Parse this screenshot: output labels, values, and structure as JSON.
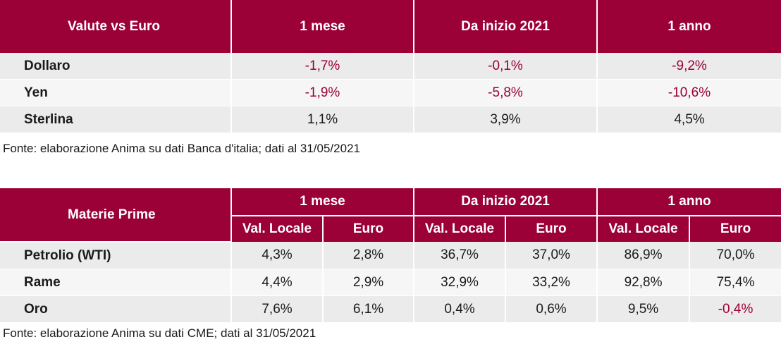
{
  "currency_table": {
    "headers": [
      "Valute vs Euro",
      "1 mese",
      "Da inizio 2021",
      "1 anno"
    ],
    "rows": [
      {
        "label": "Dollaro",
        "m1": "-1,7%",
        "ytd": "-0,1%",
        "y1": "-9,2%"
      },
      {
        "label": "Yen",
        "m1": "-1,9%",
        "ytd": "-5,8%",
        "y1": "-10,6%"
      },
      {
        "label": "Sterlina",
        "m1": "1,1%",
        "ytd": "3,9%",
        "y1": "4,5%"
      }
    ],
    "source": "Fonte: elaborazione Anima su dati Banca d'italia; dati al 31/05/2021"
  },
  "commodities_table": {
    "row_header": "Materie Prime",
    "groups": [
      "1 mese",
      "Da inizio 2021",
      "1 anno"
    ],
    "subheaders": [
      "Val. Locale",
      "Euro",
      "Val. Locale",
      "Euro",
      "Val. Locale",
      "Euro"
    ],
    "rows": [
      {
        "label": "Petrolio (WTI)",
        "values": [
          "4,3%",
          "2,8%",
          "36,7%",
          "37,0%",
          "86,9%",
          "70,0%"
        ]
      },
      {
        "label": "Rame",
        "values": [
          "4,4%",
          "2,9%",
          "32,9%",
          "33,2%",
          "92,8%",
          "75,4%"
        ]
      },
      {
        "label": "Oro",
        "values": [
          "7,6%",
          "6,1%",
          "0,4%",
          "0,6%",
          "9,5%",
          "-0,4%"
        ]
      }
    ],
    "source": "Fonte: elaborazione Anima su dati CME; dati al 31/05/2021"
  },
  "colors": {
    "header_bg": "#9b0037",
    "negative": "#9b0037",
    "row_odd": "#ebebeb",
    "row_even": "#f6f6f6"
  }
}
